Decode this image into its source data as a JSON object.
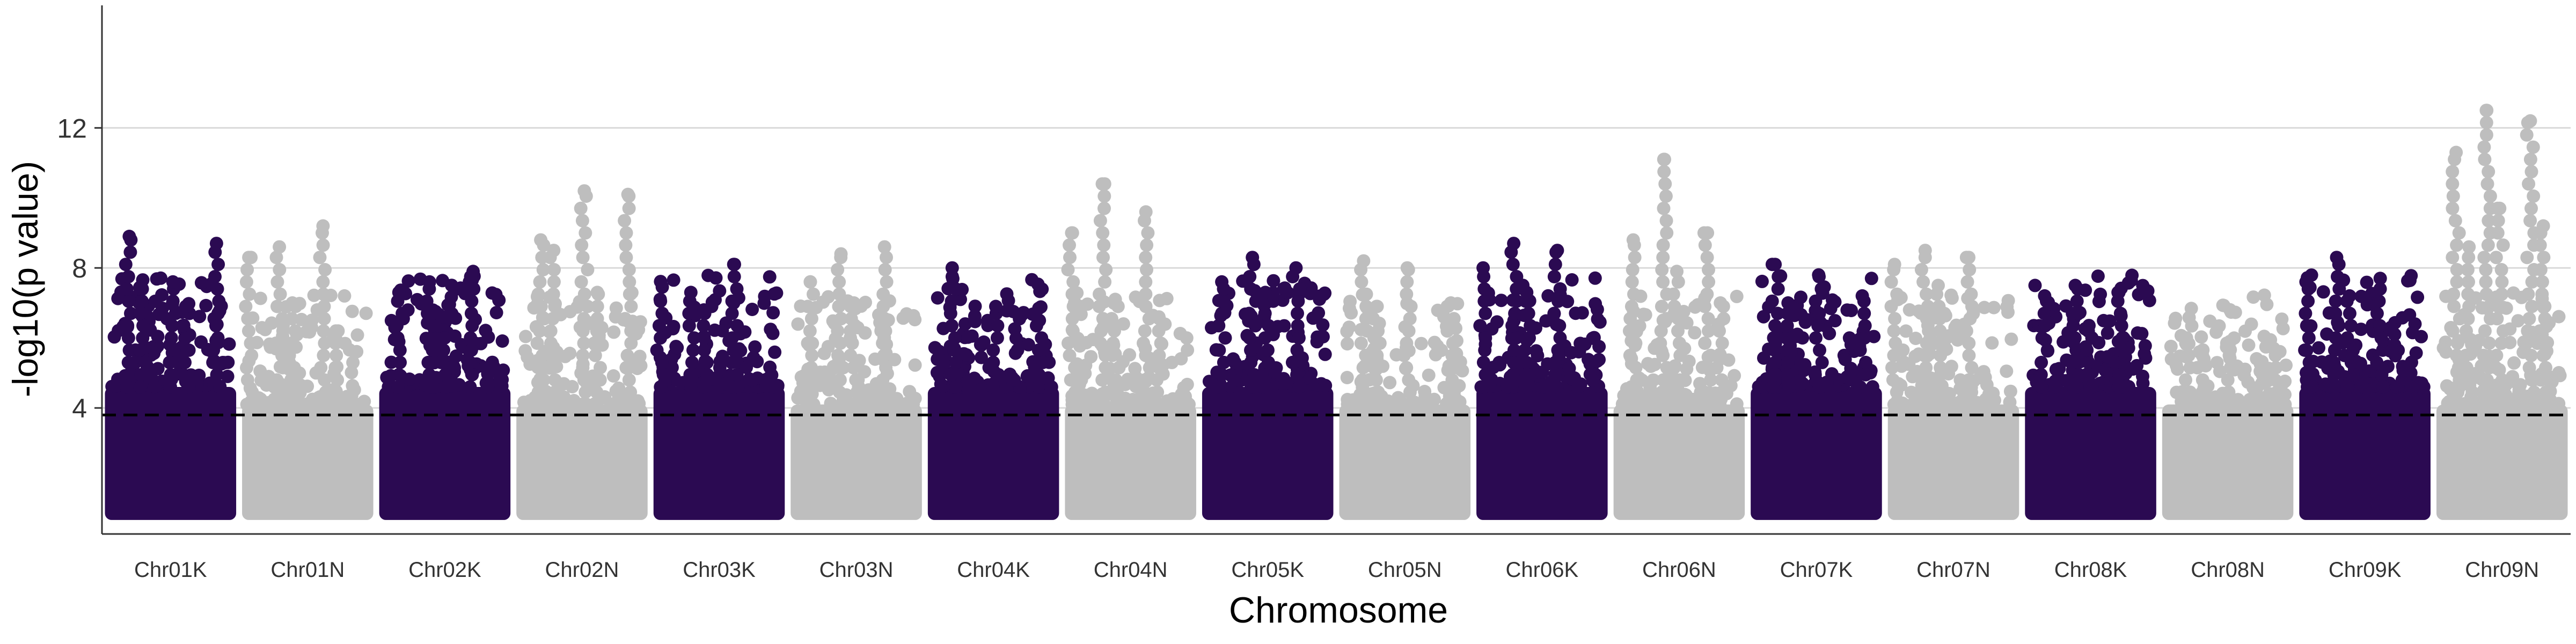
{
  "chart_data": {
    "type": "scatter",
    "title": "",
    "xlabel": "Chromosome",
    "ylabel": "-log10(p value)",
    "ylim": [
      0,
      15.5
    ],
    "yticks": [
      4,
      8,
      12
    ],
    "grid": "major horizontal lines only",
    "legend": "none",
    "threshold": {
      "value": 3.8,
      "style": "dashed",
      "color": "#000000"
    },
    "colors": {
      "odd": "#2b0a52",
      "even": "#bebebe",
      "grid": "#d9d9d9",
      "axis": "#333333"
    },
    "categories": [
      "Chr01K",
      "Chr01N",
      "Chr02K",
      "Chr02N",
      "Chr03K",
      "Chr03N",
      "Chr04K",
      "Chr04N",
      "Chr05K",
      "Chr05N",
      "Chr06K",
      "Chr06N",
      "Chr07K",
      "Chr07N",
      "Chr08K",
      "Chr08N",
      "Chr09K",
      "Chr09N"
    ],
    "series": [
      {
        "values": [
          8.9,
          7.6,
          8.7,
          7.4,
          6.9
        ]
      },
      {
        "values": [
          8.6,
          9.2,
          8.3,
          7.0,
          6.2
        ]
      },
      {
        "values": [
          7.6,
          7.9,
          7.3,
          6.6
        ]
      },
      {
        "values": [
          8.8,
          10.2,
          10.1,
          8.5,
          7.3
        ]
      },
      {
        "values": [
          7.3,
          8.1,
          7.1,
          6.8
        ]
      },
      {
        "values": [
          8.4,
          8.6,
          7.6,
          7.0
        ]
      },
      {
        "values": [
          8.0,
          6.9,
          6.5
        ]
      },
      {
        "values": [
          10.4,
          9.6,
          9.0,
          7.1,
          6.6
        ]
      },
      {
        "values": [
          8.3,
          8.0,
          7.6,
          7.3
        ]
      },
      {
        "values": [
          8.2,
          8.0,
          7.0,
          6.9
        ]
      },
      {
        "values": [
          8.7,
          8.5,
          8.0,
          7.3
        ]
      },
      {
        "values": [
          11.1,
          9.0,
          8.8,
          7.9,
          7.0
        ]
      },
      {
        "values": [
          8.1,
          7.8,
          7.2,
          7.0
        ]
      },
      {
        "values": [
          8.5,
          8.3,
          8.1,
          7.5
        ]
      },
      {
        "values": [
          7.5,
          7.3,
          7.2,
          6.2
        ]
      },
      {
        "values": [
          6.0,
          5.9,
          5.7,
          5.6
        ]
      },
      {
        "values": [
          8.3,
          7.7,
          7.6,
          7.2
        ]
      },
      {
        "values": [
          12.5,
          12.2,
          11.3,
          9.7,
          9.2,
          8.6
        ]
      }
    ]
  }
}
